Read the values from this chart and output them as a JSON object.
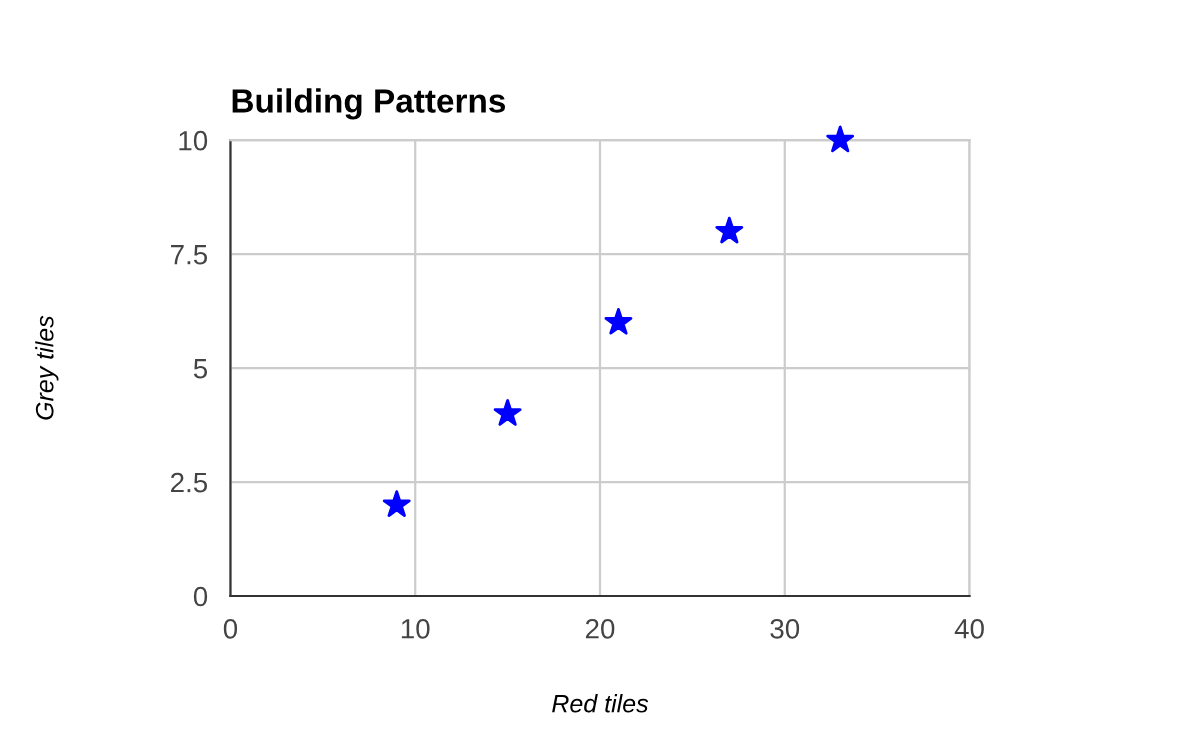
{
  "chart_data": {
    "type": "scatter",
    "title": "Building Patterns",
    "xlabel": "Red tiles",
    "ylabel": "Grey tiles",
    "x": [
      9,
      15,
      21,
      27,
      33
    ],
    "series": [
      {
        "color": "#0000ff",
        "values": [
          2,
          4,
          6,
          8,
          10
        ]
      }
    ],
    "marker": "star",
    "xlim": [
      0,
      40
    ],
    "ylim": [
      0,
      10
    ],
    "xticks": [
      0,
      10,
      20,
      30,
      40
    ],
    "yticks": [
      0,
      2.5,
      5,
      7.5,
      10
    ],
    "grid": true
  }
}
